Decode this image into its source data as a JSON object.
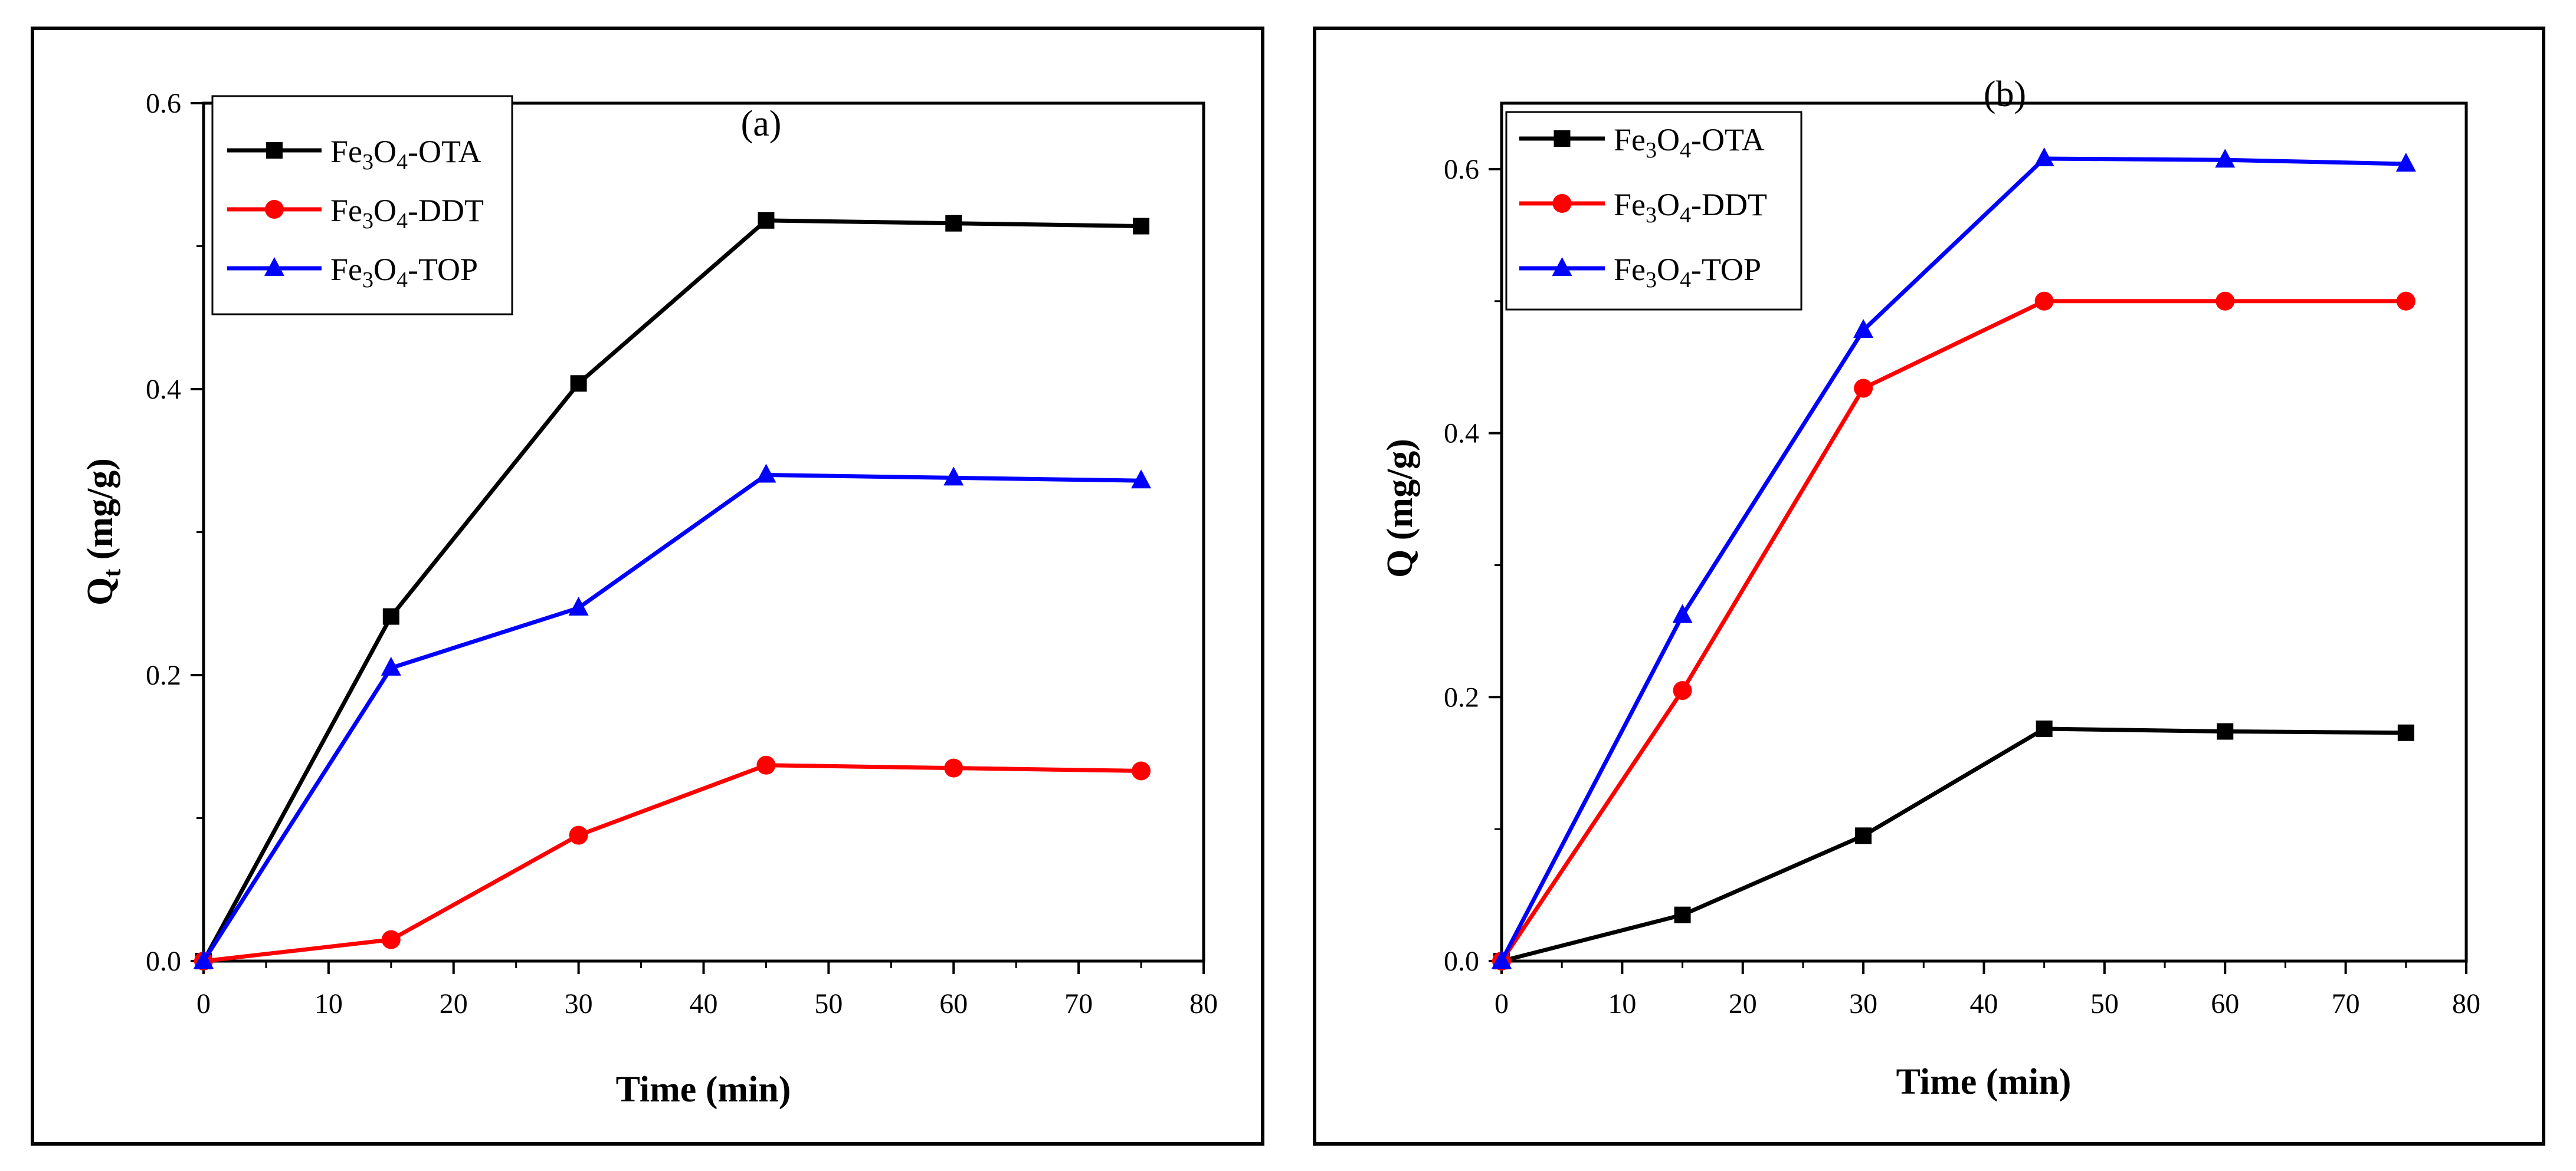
{
  "chart_data": [
    {
      "type": "line",
      "panel_label": "(a)",
      "xlabel": "Time (min)",
      "ylabel": {
        "main": "Q",
        "sub": "t",
        "unit": " (mg/g)"
      },
      "xlim": [
        0,
        80
      ],
      "ylim": [
        0,
        0.6
      ],
      "xticks": [
        0,
        10,
        20,
        30,
        40,
        50,
        60,
        70,
        80
      ],
      "yticks": [
        0.0,
        0.2,
        0.4,
        0.6
      ],
      "ytick_labels": [
        "0.0",
        "0.2",
        "0.4",
        "0.6"
      ],
      "legend_position": "top-left",
      "x": [
        0,
        15,
        30,
        45,
        60,
        75
      ],
      "series": [
        {
          "name": "Fe3O4-OTA",
          "label_parts": [
            "Fe",
            "3",
            "O",
            "4",
            "-OTA"
          ],
          "color": "#000000",
          "marker": "square",
          "values": [
            0.0,
            0.241,
            0.404,
            0.518,
            0.516,
            0.514
          ]
        },
        {
          "name": "Fe3O4-DDT",
          "label_parts": [
            "Fe",
            "3",
            "O",
            "4",
            "-DDT"
          ],
          "color": "#ff0000",
          "marker": "circle",
          "values": [
            0.0,
            0.015,
            0.088,
            0.137,
            0.135,
            0.133
          ]
        },
        {
          "name": "Fe3O4-TOP",
          "label_parts": [
            "Fe",
            "3",
            "O",
            "4",
            "-TOP"
          ],
          "color": "#0000ff",
          "marker": "triangle",
          "values": [
            0.0,
            0.205,
            0.247,
            0.34,
            0.338,
            0.336
          ]
        }
      ]
    },
    {
      "type": "line",
      "panel_label": "(b)",
      "xlabel": "Time (min)",
      "ylabel": {
        "main": "Q",
        "sub": "",
        "unit": " (mg/g)"
      },
      "xlim": [
        0,
        80
      ],
      "ylim": [
        0,
        0.65
      ],
      "xticks": [
        0,
        10,
        20,
        30,
        40,
        50,
        60,
        70,
        80
      ],
      "yticks": [
        0.0,
        0.2,
        0.4,
        0.6
      ],
      "ytick_labels": [
        "0.0",
        "0.2",
        "0.4",
        "0.6"
      ],
      "legend_position": "top-left",
      "x": [
        0,
        15,
        30,
        45,
        60,
        75
      ],
      "series": [
        {
          "name": "Fe3O4-OTA",
          "label_parts": [
            "Fe",
            "3",
            "O",
            "4",
            "-OTA"
          ],
          "color": "#000000",
          "marker": "square",
          "values": [
            0.0,
            0.035,
            0.095,
            0.176,
            0.174,
            0.173
          ]
        },
        {
          "name": "Fe3O4-DDT",
          "label_parts": [
            "Fe",
            "3",
            "O",
            "4",
            "-DDT"
          ],
          "color": "#ff0000",
          "marker": "circle",
          "values": [
            0.0,
            0.205,
            0.434,
            0.5,
            0.5,
            0.5
          ]
        },
        {
          "name": "Fe3O4-TOP",
          "label_parts": [
            "Fe",
            "3",
            "O",
            "4",
            "-TOP"
          ],
          "color": "#0000ff",
          "marker": "triangle",
          "values": [
            0.0,
            0.262,
            0.478,
            0.608,
            0.607,
            0.604
          ]
        }
      ]
    }
  ]
}
